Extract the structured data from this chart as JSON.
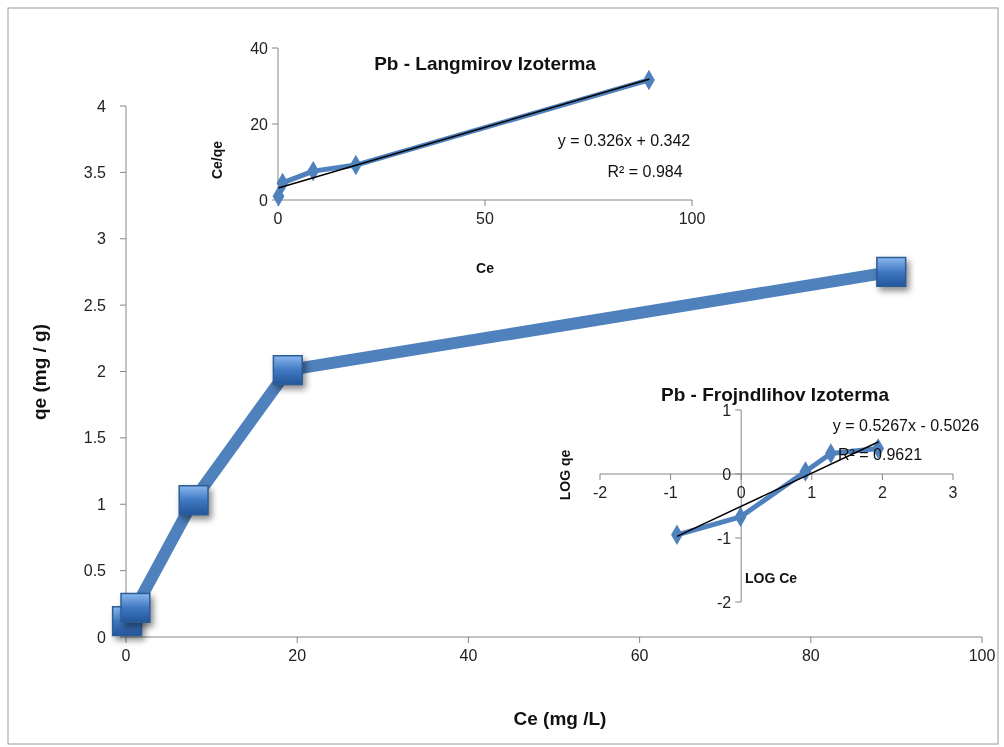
{
  "chart_data": [
    {
      "type": "line",
      "xlabel": "Ce (mg /L)",
      "ylabel": "qe (mg / g)",
      "x": [
        0.12,
        1.1,
        7.9,
        18.9,
        89.4
      ],
      "xlim": [
        0,
        100
      ],
      "xticks": [
        0,
        20,
        40,
        60,
        80,
        100
      ],
      "ylim": [
        0,
        4
      ],
      "yticks": [
        0,
        0.5,
        1,
        1.5,
        2,
        2.5,
        3,
        3.5,
        4
      ],
      "marker": "square",
      "grid": false,
      "series": [
        {
          "color": "#4f81bd",
          "values": [
            0.12,
            0.22,
            1.03,
            2.01,
            2.75
          ]
        }
      ]
    },
    {
      "type": "line",
      "title": "Pb - Langmirov  Izoterma",
      "xlabel": "Ce",
      "ylabel": "Ce/qe",
      "xlim": [
        0,
        100
      ],
      "xticks": [
        0,
        50,
        100
      ],
      "ylim": [
        0,
        40
      ],
      "yticks": [
        0,
        20,
        40
      ],
      "marker": "diamond",
      "grid": false,
      "annotations": [
        "y = 0.326x + 0.342",
        "R² = 0.984"
      ],
      "series": [
        {
          "color": "#4f81bd",
          "x": [
            0.12,
            1.1,
            8.5,
            18.8,
            89.6
          ],
          "values": [
            1,
            4.5,
            7.6,
            9.2,
            31.6
          ]
        },
        {
          "color": "#000000",
          "marker": "none",
          "x": [
            0.3,
            89.6
          ],
          "values": [
            3.2,
            31.8
          ]
        }
      ]
    },
    {
      "type": "line",
      "title": "Pb - Frojndlihov  Izoterma",
      "xlabel": "LOG  Ce",
      "ylabel": "LOG  qe",
      "xlim": [
        -2,
        3
      ],
      "xticks": [
        -2,
        -1,
        0,
        1,
        2,
        3
      ],
      "ylim": [
        -2,
        1
      ],
      "yticks": [
        -2,
        -1,
        0,
        1
      ],
      "marker": "diamond",
      "grid": false,
      "annotations": [
        "y = 0.5267x - 0.5026",
        "R² = 0.9621"
      ],
      "series": [
        {
          "color": "#4f81bd",
          "x": [
            -0.91,
            -0.01,
            0.91,
            1.27,
            1.94
          ],
          "values": [
            -0.95,
            -0.67,
            0.04,
            0.32,
            0.4
          ]
        },
        {
          "color": "#000000",
          "marker": "none",
          "x": [
            -0.9,
            1.94
          ],
          "values": [
            -0.97,
            0.5
          ]
        }
      ]
    }
  ]
}
